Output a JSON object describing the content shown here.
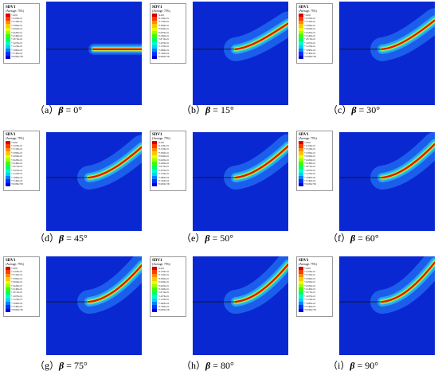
{
  "legend": {
    "title": "SDV1",
    "subtitle": "(Average: 75%)",
    "colors": [
      "#d40000",
      "#ff3c00",
      "#ff8c00",
      "#ffc800",
      "#e6ff00",
      "#9cff00",
      "#3cff00",
      "#00ff64",
      "#00ffc8",
      "#00d2ff",
      "#0082ff",
      "#0032ff",
      "#0000d2"
    ]
  },
  "colors": {
    "field_background": "#0a28d2",
    "band_outer": "#1e64ee",
    "band_mid": "#2aa6f2",
    "band_inner": "#36e8c0",
    "band_core_yellow": "#e8e820",
    "crack_core": "#dc1c00",
    "precrack_line": "#101010"
  },
  "panels": [
    {
      "label": "（a）",
      "symbol": "β",
      "value": " = 0°",
      "angle": 0
    },
    {
      "label": "（b）",
      "symbol": "β",
      "value": " = 15°",
      "angle": 15
    },
    {
      "label": "（c）",
      "symbol": "β",
      "value": " = 30°",
      "angle": 30
    },
    {
      "label": "（d）",
      "symbol": "β",
      "value": " = 45°",
      "angle": 45
    },
    {
      "label": "（e）",
      "symbol": "β",
      "value": " = 50°",
      "angle": 50
    },
    {
      "label": "（f）",
      "symbol": "β",
      "value": " = 60°",
      "angle": 60
    },
    {
      "label": "（g）",
      "symbol": "β",
      "value": " = 75°",
      "angle": 75
    },
    {
      "label": "（h）",
      "symbol": "β",
      "value": " = 80°",
      "angle": 80
    },
    {
      "label": "（i）",
      "symbol": "β",
      "value": " = 90°",
      "angle": 90
    }
  ]
}
